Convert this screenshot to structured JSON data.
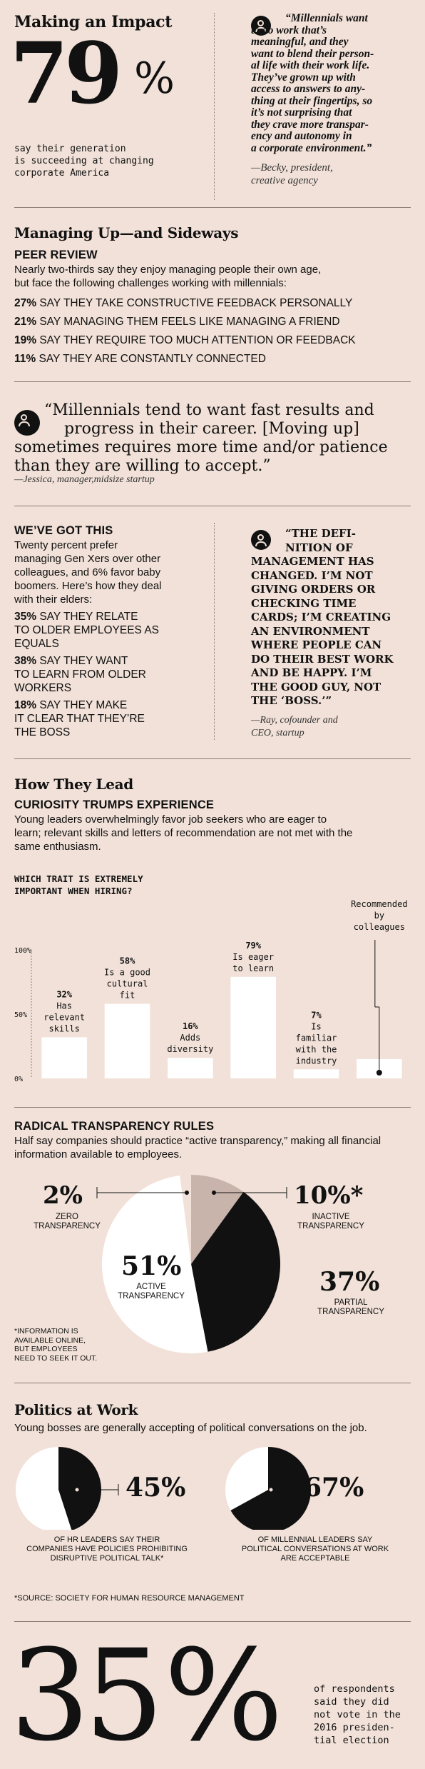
{
  "impact": {
    "heading": "Making an Impact",
    "big_number": "79",
    "percent_sign": "%",
    "caption_line1": "say their generation",
    "caption_line2": "is succeeding at changing",
    "caption_line3": "corporate America",
    "quote_lines": [
      "“Millennials want",
      "to do work that’s",
      "meaningful, and they",
      "want to blend their person-",
      "al life with their work life.",
      "They’ve grown up with",
      "access to answers to any-",
      "thing at their fingertips, so",
      "it’s not surprising that",
      "they crave more transpar-",
      "ency and autonomy in",
      "a corporate environment.”"
    ],
    "attrib_line1": "—Becky, president,",
    "attrib_line2": "creative agency"
  },
  "managing": {
    "heading": "Managing Up—and Sideways",
    "subheading": "PEER REVIEW",
    "intro_line1": "Nearly two-thirds say they enjoy managing people their own age,",
    "intro_line2": "but face the following challenges working with millennials:",
    "stats": [
      {
        "pct": "27%",
        "text": "SAY THEY TAKE CONSTRUCTIVE FEEDBACK PERSONALLY"
      },
      {
        "pct": "21%",
        "text": "SAY MANAGING THEM FEELS LIKE MANAGING A FRIEND"
      },
      {
        "pct": "19%",
        "text": "SAY THEY REQUIRE TOO MUCH ATTENTION OR FEEDBACK"
      },
      {
        "pct": "11%",
        "text": "SAY THEY ARE CONSTANTLY CONNECTED"
      }
    ]
  },
  "jessica": {
    "line1": "“Millennials tend to want fast results and",
    "line2": "progress in their career. [Moving up]",
    "line3": "sometimes requires more time and/or patience",
    "line4": "than they are willing to accept.”",
    "attrib": "—Jessica, manager,midsize startup"
  },
  "gotthis": {
    "subheading": "WE’VE GOT THIS",
    "intro_lines": [
      "Twenty percent prefer",
      "managing Gen Xers over other",
      "colleagues, and 6% favor baby",
      "boomers. Here’s how they deal",
      "with their elders:"
    ],
    "stats": [
      {
        "pct": "35%",
        "lines": [
          "SAY THEY RELATE",
          "TO OLDER EMPLOYEES AS",
          "EQUALS"
        ]
      },
      {
        "pct": "38%",
        "lines": [
          "SAY THEY WANT",
          "TO LEARN FROM OLDER",
          "WORKERS"
        ]
      },
      {
        "pct": "18%",
        "lines": [
          "SAY THEY MAKE",
          "IT CLEAR THAT THEY’RE",
          "THE BOSS"
        ]
      }
    ],
    "quote_lines": [
      "“THE DEFI-",
      "NITION OF",
      "MANAGEMENT HAS",
      "CHANGED. I’M NOT",
      "GIVING ORDERS OR",
      "CHECKING TIME",
      "CARDS; I’M CREATING",
      "AN ENVIRONMENT",
      "WHERE PEOPLE CAN",
      "DO THEIR BEST WORK",
      "AND BE HAPPY. I’M",
      "THE GOOD GUY, NOT",
      "THE ‘BOSS.’”"
    ],
    "attrib_line1": "—Ray, cofounder and",
    "attrib_line2": "CEO, startup"
  },
  "lead": {
    "heading": "How They Lead",
    "subheading": "CURIOSITY TRUMPS EXPERIENCE",
    "intro_lines": [
      "Young leaders overwhelmingly favor job seekers who are eager to",
      "learn; relevant skills and letters of recommendation are not met with the",
      "same enthusiasm."
    ]
  },
  "chart_data": [
    {
      "type": "bar",
      "title": "WHICH TRAIT IS EXTREMELY IMPORTANT WHEN HIRING?",
      "categories": [
        "Has relevant skills",
        "Is a good cultural fit",
        "Adds diversity",
        "Is eager to learn",
        "Is familiar with the industry",
        "Recommended by colleagues"
      ],
      "values": [
        32,
        58,
        16,
        79,
        7,
        15
      ],
      "ylim": [
        0,
        100
      ],
      "yticks": [
        "100%",
        "50%",
        "0%"
      ],
      "value_labels": [
        "32%",
        "58%",
        "16%",
        "79%",
        "7%",
        "15%"
      ],
      "label_lines": [
        [
          "Has",
          "relevant",
          "skills"
        ],
        [
          "Is a good",
          "cultural",
          "fit"
        ],
        [
          "Adds",
          "diversity"
        ],
        [
          "Is eager",
          "to learn"
        ],
        [
          "Is",
          "familiar",
          "with the",
          "industry"
        ],
        [
          "Recommended",
          "by",
          "colleagues"
        ]
      ],
      "bar_color": "#ffffff"
    },
    {
      "type": "pie",
      "slices": [
        {
          "label": "ZERO TRANSPARENCY",
          "value": 2,
          "color": "#f1e1d8"
        },
        {
          "label": "INACTIVE TRANSPARENCY",
          "value": 10,
          "color": "#c8b4aa"
        },
        {
          "label": "PARTIAL TRANSPARENCY",
          "value": 37,
          "color": "#111111"
        },
        {
          "label": "ACTIVE TRANSPARENCY",
          "value": 51,
          "color": "#ffffff"
        }
      ]
    },
    {
      "type": "pie",
      "slices": [
        {
          "label": "",
          "value": 45,
          "color": "#111111"
        },
        {
          "label": "",
          "value": 55,
          "color": "#ffffff"
        }
      ]
    },
    {
      "type": "pie",
      "slices": [
        {
          "label": "",
          "value": 67,
          "color": "#111111"
        },
        {
          "label": "",
          "value": 33,
          "color": "#ffffff"
        }
      ]
    }
  ],
  "transparency": {
    "subheading": "RADICAL TRANSPARENCY RULES",
    "intro_line1": "Half say companies should practice “active transparency,” making all financial",
    "intro_line2": "information available to employees.",
    "zero_pct": "2%",
    "zero_l1": "ZERO",
    "zero_l2": "TRANSPARENCY",
    "inactive_pct": "10%*",
    "inactive_l1": "INACTIVE",
    "inactive_l2": "TRANSPARENCY",
    "active_pct": "51%",
    "active_l1": "ACTIVE",
    "active_l2": "TRANSPARENCY",
    "partial_pct": "37%",
    "partial_l1": "PARTIAL",
    "partial_l2": "TRANSPARENCY",
    "footnote_lines": [
      "*INFORMATION IS",
      "AVAILABLE ONLINE,",
      "BUT EMPLOYEES",
      "NEED TO SEEK IT OUT."
    ]
  },
  "politics": {
    "heading": "Politics at Work",
    "intro": "Young bosses are generally accepting of political conversations on the job.",
    "left_pct": "45%",
    "left_l1": "OF HR LEADERS SAY THEIR",
    "left_l2": "COMPANIES HAVE POLICIES PROHIBITING",
    "left_l3": "DISRUPTIVE POLITICAL TALK*",
    "right_pct": "67%",
    "right_l1": "OF MILLENNIAL LEADERS SAY",
    "right_l2": "POLITICAL CONVERSATIONS AT WORK",
    "right_l3": "ARE ACCEPTABLE",
    "source": "*SOURCE: SOCIETY FOR HUMAN RESOURCE MANAGEMENT"
  },
  "vote": {
    "big_number": "35",
    "percent_sign": "%",
    "lines": [
      "of respondents",
      "said they did",
      "not vote in the",
      "2016 presiden-",
      "tial election"
    ]
  }
}
